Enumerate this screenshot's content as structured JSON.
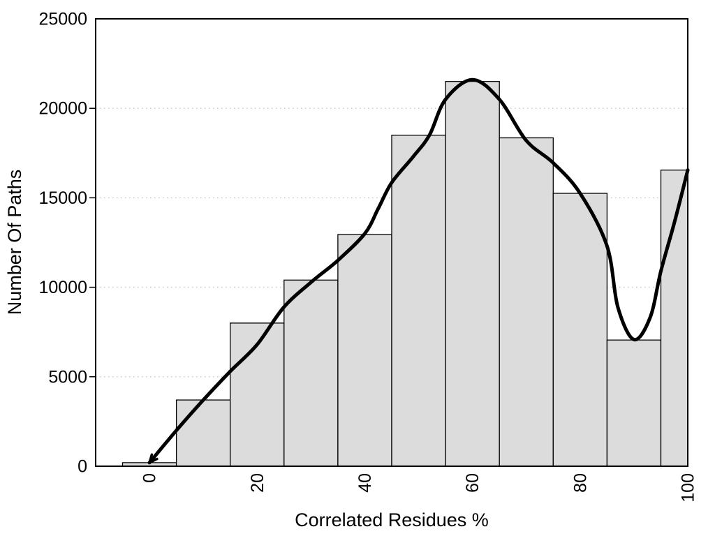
{
  "chart_data": {
    "type": "bar",
    "subtype": "histogram-with-density-curve",
    "title": "",
    "xlabel": "Correlated Residues %",
    "ylabel": "Number Of Paths",
    "categories": [
      0,
      10,
      20,
      30,
      40,
      50,
      60,
      70,
      80,
      90,
      100
    ],
    "values": [
      200,
      3700,
      8000,
      10400,
      12950,
      18500,
      21500,
      18350,
      15250,
      7050,
      16550
    ],
    "bin_width": 10,
    "xlim": [
      -10,
      100
    ],
    "ylim": [
      0,
      25000
    ],
    "x_ticks": [
      0,
      20,
      40,
      60,
      80,
      100
    ],
    "y_ticks": [
      0,
      5000,
      10000,
      15000,
      20000,
      25000
    ],
    "y_ticks_with_marks": [
      5000,
      10000,
      15000,
      20000
    ],
    "grid": "horizontal-dotted",
    "legend": "none",
    "x_tick_label_rotation_deg": -90,
    "density_curve": {
      "arrow_at_start": true,
      "points": [
        [
          0,
          200
        ],
        [
          5,
          2000
        ],
        [
          10,
          3700
        ],
        [
          15,
          5300
        ],
        [
          20,
          6800
        ],
        [
          25,
          8900
        ],
        [
          30.5,
          10400
        ],
        [
          35,
          11500
        ],
        [
          40,
          13000
        ],
        [
          42.5,
          14400
        ],
        [
          45,
          15850
        ],
        [
          49,
          17300
        ],
        [
          52,
          18500
        ],
        [
          55,
          20500
        ],
        [
          60,
          21600
        ],
        [
          65,
          20500
        ],
        [
          70,
          18200
        ],
        [
          75,
          16950
        ],
        [
          80,
          15250
        ],
        [
          85,
          12300
        ],
        [
          87,
          8900
        ],
        [
          90,
          7080
        ],
        [
          93,
          8300
        ],
        [
          95,
          10900
        ],
        [
          97.5,
          13600
        ],
        [
          100,
          16550
        ]
      ]
    },
    "colors": {
      "background": "#ffffff",
      "bar_fill": "#dcdcdc",
      "bar_stroke": "#000000",
      "curve": "#000000",
      "grid": "#c9c9c9",
      "box": "#000000",
      "text": "#000000"
    }
  }
}
